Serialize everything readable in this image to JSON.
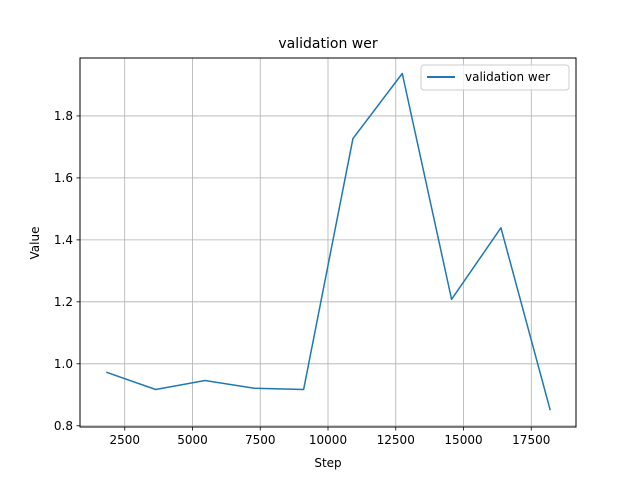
{
  "chart_data": {
    "type": "line",
    "title": "validation wer",
    "xlabel": "Step",
    "ylabel": "Value",
    "xlim": [
      850,
      19150
    ],
    "ylim": [
      0.796,
      1.987
    ],
    "x_ticks": [
      2500,
      5000,
      7500,
      10000,
      12500,
      15000,
      17500
    ],
    "y_ticks": [
      0.8,
      1.0,
      1.2,
      1.4,
      1.6,
      1.8
    ],
    "x_tick_labels": [
      "2500",
      "5000",
      "7500",
      "10000",
      "12500",
      "15000",
      "17500"
    ],
    "y_tick_labels": [
      "0.8",
      "1.0",
      "1.2",
      "1.4",
      "1.6",
      "1.8"
    ],
    "grid": true,
    "legend_position": "top-right",
    "series": [
      {
        "name": "validation wer",
        "color": "#1f77b4",
        "x": [
          1820,
          3640,
          5460,
          7280,
          9100,
          10920,
          12740,
          14560,
          16380,
          18200
        ],
        "y": [
          0.973,
          0.917,
          0.946,
          0.921,
          0.917,
          1.727,
          1.937,
          1.208,
          1.439,
          0.85
        ]
      }
    ]
  }
}
